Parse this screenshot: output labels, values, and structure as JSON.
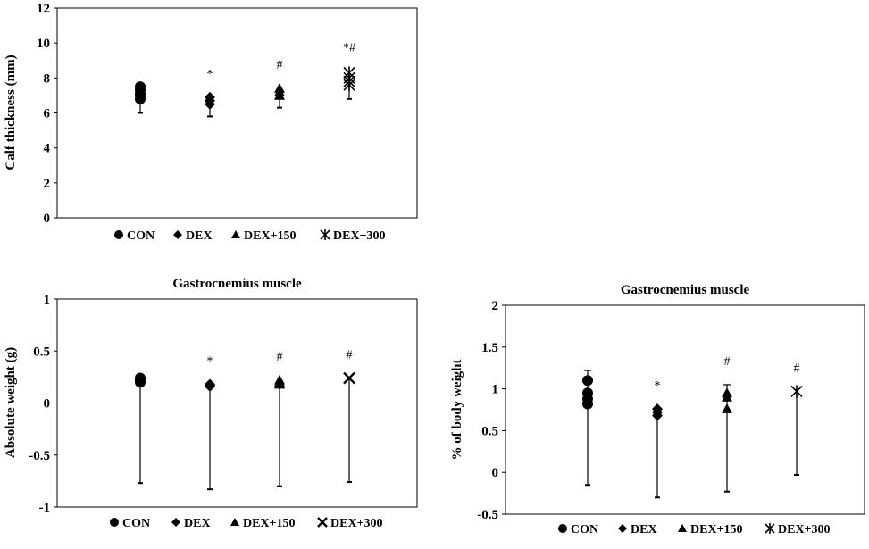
{
  "charts": [
    {
      "type": "scatter",
      "title": "",
      "ylabel": "Calf thickness (mm)",
      "ylim": [
        0,
        12
      ],
      "yticks": [
        "0",
        "2",
        "4",
        "6",
        "8",
        "10",
        "12"
      ],
      "ytick_values": [
        0,
        2,
        4,
        6,
        8,
        10,
        12
      ],
      "grid": false,
      "legend": "bottom",
      "series": [
        {
          "name": "CON",
          "marker": "circle",
          "values": [
            6.8,
            7.0,
            7.1,
            7.3,
            7.5
          ],
          "err_low": 6.0,
          "err_high": null,
          "sig": ""
        },
        {
          "name": "DEX",
          "marker": "diamond",
          "values": [
            6.5,
            6.7,
            6.9
          ],
          "err_low": 5.8,
          "err_high": null,
          "sig": "*"
        },
        {
          "name": "DEX+150",
          "marker": "triangle",
          "values": [
            7.0,
            7.2,
            7.4
          ],
          "err_low": 6.3,
          "err_high": null,
          "sig": "#"
        },
        {
          "name": "DEX+300",
          "marker": "star",
          "values": [
            7.6,
            7.8,
            8.0,
            8.3
          ],
          "err_low": 6.8,
          "err_high": 8.4,
          "sig": "*#"
        }
      ]
    },
    {
      "type": "scatter",
      "title": "Gastrocnemius muscle",
      "ylabel": "Absolute weight (g)",
      "ylim": [
        -1,
        1
      ],
      "yticks": [
        "-1",
        "-0.5",
        "0",
        "0.5",
        "1"
      ],
      "ytick_values": [
        -1,
        -0.5,
        0,
        0.5,
        1
      ],
      "grid": false,
      "legend": "bottom",
      "series": [
        {
          "name": "CON",
          "marker": "circle",
          "values": [
            0.2,
            0.22,
            0.24
          ],
          "err_low": -0.77,
          "err_high": null,
          "sig": ""
        },
        {
          "name": "DEX",
          "marker": "diamond",
          "values": [
            0.16,
            0.17,
            0.18
          ],
          "err_low": -0.83,
          "err_high": null,
          "sig": "*"
        },
        {
          "name": "DEX+150",
          "marker": "triangle",
          "values": [
            0.18,
            0.2,
            0.22
          ],
          "err_low": -0.8,
          "err_high": null,
          "sig": "#"
        },
        {
          "name": "DEX+300",
          "marker": "x",
          "values": [
            0.24
          ],
          "err_low": -0.76,
          "err_high": null,
          "sig": "#"
        }
      ]
    },
    {
      "type": "scatter",
      "title": "Gastrocnemius muscle",
      "ylabel": "% of body weight",
      "ylim": [
        -0.5,
        2
      ],
      "yticks": [
        "-0.5",
        "0",
        "0.5",
        "1",
        "1.5",
        "2"
      ],
      "ytick_values": [
        -0.5,
        0,
        0.5,
        1,
        1.5,
        2
      ],
      "grid": false,
      "legend": "bottom",
      "series": [
        {
          "name": "CON",
          "marker": "circle",
          "values": [
            0.82,
            0.88,
            0.95,
            1.1
          ],
          "err_low": -0.15,
          "err_high": 1.22,
          "sig": ""
        },
        {
          "name": "DEX",
          "marker": "diamond",
          "values": [
            0.68,
            0.72,
            0.76
          ],
          "err_low": -0.3,
          "err_high": null,
          "sig": "*"
        },
        {
          "name": "DEX+150",
          "marker": "triangle",
          "values": [
            0.76,
            0.9,
            0.95
          ],
          "err_low": -0.23,
          "err_high": 1.05,
          "sig": "#"
        },
        {
          "name": "DEX+300",
          "marker": "star",
          "values": [
            0.97
          ],
          "err_low": -0.03,
          "err_high": null,
          "sig": "#"
        }
      ]
    }
  ]
}
